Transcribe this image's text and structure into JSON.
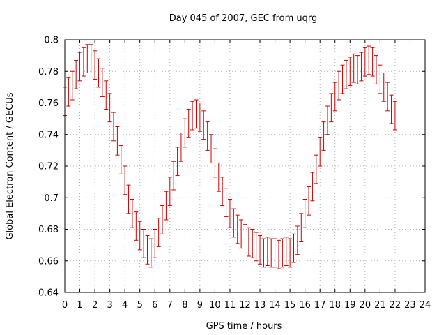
{
  "chart_data": {
    "type": "scatter",
    "title": "Day 045 of 2007, GEC from uqrg",
    "xlabel": "GPS time / hours",
    "ylabel": "Global Electron Content / GECUs",
    "xlim": [
      0,
      24
    ],
    "ylim": [
      0.64,
      0.8
    ],
    "xticks": [
      0,
      1,
      2,
      3,
      4,
      5,
      6,
      7,
      8,
      9,
      10,
      11,
      12,
      13,
      14,
      15,
      16,
      17,
      18,
      19,
      20,
      21,
      22,
      23,
      24
    ],
    "yticks": [
      0.64,
      0.66,
      0.68,
      0.7,
      0.72,
      0.74,
      0.76,
      0.78,
      0.8
    ],
    "grid": true,
    "error_bars": true,
    "series_color": "#cc0000",
    "step": 0.25,
    "y": [
      0.761,
      0.767,
      0.771,
      0.778,
      0.783,
      0.786,
      0.788,
      0.788,
      0.784,
      0.779,
      0.773,
      0.765,
      0.757,
      0.745,
      0.736,
      0.724,
      0.711,
      0.699,
      0.69,
      0.682,
      0.676,
      0.671,
      0.667,
      0.665,
      0.671,
      0.678,
      0.686,
      0.695,
      0.704,
      0.714,
      0.723,
      0.732,
      0.741,
      0.747,
      0.752,
      0.753,
      0.751,
      0.746,
      0.739,
      0.731,
      0.722,
      0.713,
      0.704,
      0.697,
      0.69,
      0.684,
      0.68,
      0.677,
      0.674,
      0.672,
      0.671,
      0.669,
      0.667,
      0.665,
      0.666,
      0.665,
      0.665,
      0.664,
      0.665,
      0.666,
      0.665,
      0.668,
      0.673,
      0.681,
      0.69,
      0.698,
      0.707,
      0.718,
      0.729,
      0.739,
      0.749,
      0.757,
      0.764,
      0.771,
      0.775,
      0.778,
      0.78,
      0.782,
      0.781,
      0.783,
      0.786,
      0.787,
      0.786,
      0.781,
      0.775,
      0.77,
      0.764,
      0.756,
      0.752
    ],
    "yerr": 0.009
  }
}
